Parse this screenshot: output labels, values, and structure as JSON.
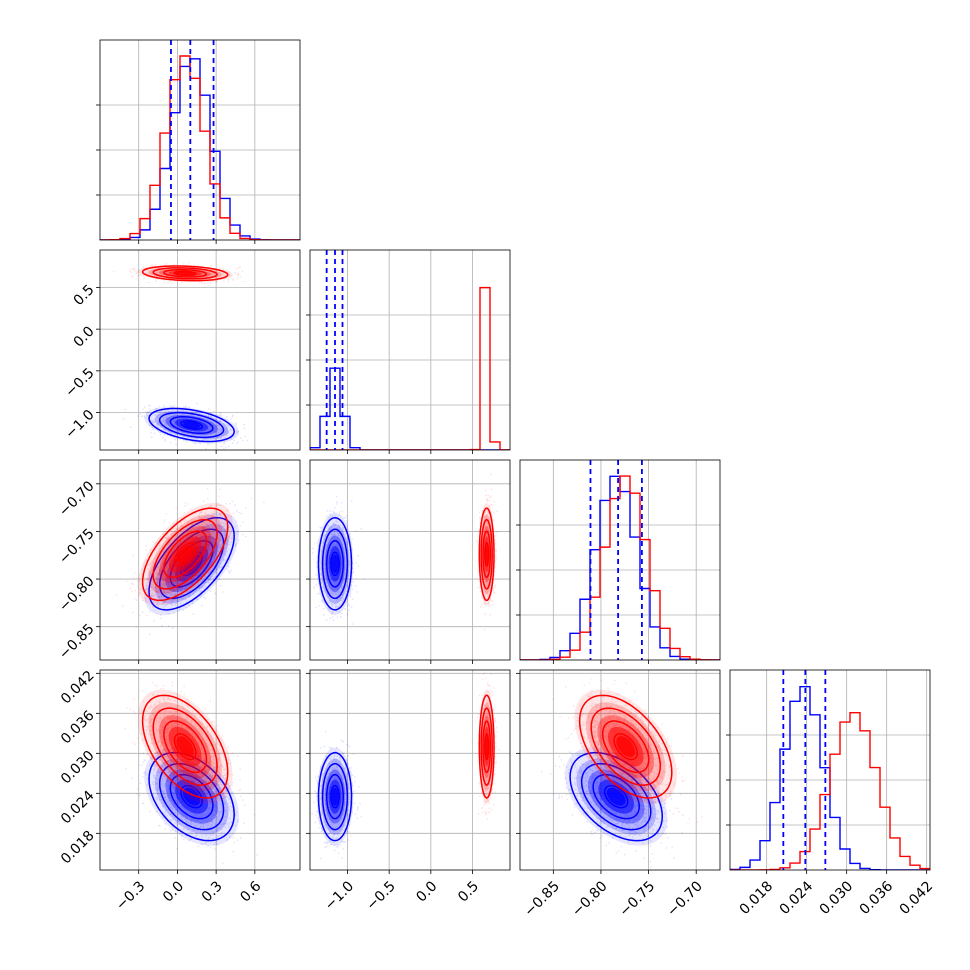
{
  "chart_data": {
    "type": "corner",
    "title": "",
    "parameters": [
      "",
      "",
      "",
      ""
    ],
    "colors": {
      "series_a": "#0000ff",
      "series_b": "#ff0000",
      "grid": "#b0b0b0",
      "quantile_lines": "#0000ff"
    },
    "series": [
      {
        "color": "#0000ff",
        "means": [
          0.11,
          -1.15,
          -0.784,
          0.0235
        ],
        "sds": [
          0.15,
          0.09,
          0.022,
          0.003
        ],
        "corr": {
          "0-1": -0.4,
          "0-2": 0.6,
          "0-3": -0.4,
          "1-2": 0.0,
          "1-3": 0.0,
          "2-3": -0.45
        },
        "quantiles_16_50_84": [
          [
            -0.05,
            0.1,
            0.28
          ],
          [
            -1.25,
            -1.15,
            -1.06
          ],
          [
            -0.811,
            -0.782,
            -0.757
          ],
          [
            0.0205,
            0.0238,
            0.0268
          ]
        ]
      },
      {
        "color": "#ff0000",
        "means": [
          0.06,
          0.67,
          -0.774,
          0.031
        ],
        "sds": [
          0.15,
          0.04,
          0.022,
          0.0035
        ],
        "corr": {
          "0-1": -0.2,
          "0-2": 0.6,
          "0-3": -0.5,
          "1-2": 0.0,
          "1-3": 0.0,
          "2-3": -0.5
        },
        "quantiles_16_50_84": [
          [
            -0.08,
            0.06,
            0.21
          ],
          [
            0.62,
            0.67,
            0.72
          ],
          [
            -0.796,
            -0.774,
            -0.752
          ],
          [
            0.0276,
            0.0311,
            0.0346
          ]
        ]
      }
    ],
    "axes_ranges": [
      [
        -0.6,
        0.95
      ],
      [
        -1.45,
        0.95
      ],
      [
        -0.885,
        -0.675
      ],
      [
        0.0125,
        0.0425
      ]
    ],
    "ticks": [
      [
        -0.3,
        0.0,
        0.3,
        0.6
      ],
      [
        -1.0,
        -0.5,
        0.0,
        0.5
      ],
      [
        -0.85,
        -0.8,
        -0.75,
        -0.7
      ],
      [
        0.018,
        0.024,
        0.03,
        0.036,
        0.042
      ]
    ],
    "tick_labels": [
      [
        "−0.3",
        "0.0",
        "0.3",
        "0.6"
      ],
      [
        "−1.0",
        "−0.5",
        "0.0",
        "0.5"
      ],
      [
        "−0.85",
        "−0.80",
        "−0.75",
        "−0.70"
      ],
      [
        "0.018",
        "0.024",
        "0.030",
        "0.036",
        "0.042"
      ]
    ],
    "histogram_bins": 20,
    "grid": true
  }
}
